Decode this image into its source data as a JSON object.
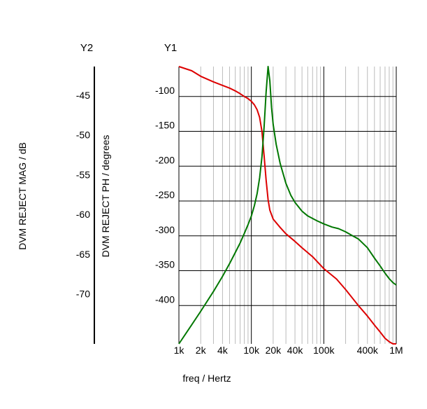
{
  "chart_data": {
    "type": "line",
    "title": "",
    "xlabel": "freq / Hertz",
    "x_scale": "log",
    "xlim": [
      1000,
      1000000
    ],
    "x_tick_labels": [
      {
        "value": 1000,
        "label": "1k"
      },
      {
        "value": 2000,
        "label": "2k"
      },
      {
        "value": 4000,
        "label": "4k"
      },
      {
        "value": 10000,
        "label": "10k"
      },
      {
        "value": 20000,
        "label": "20k"
      },
      {
        "value": 40000,
        "label": "40k"
      },
      {
        "value": 100000,
        "label": "100k"
      },
      {
        "value": 400000,
        "label": "400k"
      },
      {
        "value": 1000000,
        "label": "1M"
      }
    ],
    "grid": true,
    "y1": {
      "name": "Y1",
      "label": "DVM REJECT PH / degrees",
      "ylim": [
        -455,
        -57
      ],
      "ticks": [
        -100,
        -150,
        -200,
        -250,
        -300,
        -350,
        -400
      ],
      "tick_labels": [
        "-100",
        "-150",
        "-200",
        "-250",
        "-300",
        "-350",
        "-400"
      ]
    },
    "y2": {
      "name": "Y2",
      "label": "DVM REJECT MAG / dB",
      "ylim": [
        -76.3,
        -41.4
      ],
      "ticks": [
        -45,
        -50,
        -55,
        -60,
        -65,
        -70
      ],
      "tick_labels": [
        "-45",
        "-50",
        "-55",
        "-60",
        "-65",
        "-70"
      ]
    },
    "series": [
      {
        "color": "#dd0000",
        "axis": "y1",
        "x": [
          1000,
          1500,
          2000,
          3000,
          4000,
          5000,
          6000,
          7000,
          8000,
          9000,
          10000,
          11000,
          12000,
          13000,
          14000,
          15000,
          16000,
          17000,
          18000,
          20000,
          25000,
          30000,
          40000,
          50000,
          70000,
          100000,
          150000,
          200000,
          300000,
          400000,
          500000,
          600000,
          700000,
          800000,
          900000,
          1000000
        ],
        "values": [
          -57,
          -63,
          -71,
          -79,
          -84,
          -88,
          -92,
          -96,
          -100,
          -103,
          -107,
          -112,
          -119,
          -130,
          -150,
          -185,
          -220,
          -248,
          -263,
          -276,
          -288,
          -297,
          -308,
          -317,
          -330,
          -347,
          -362,
          -377,
          -400,
          -415,
          -428,
          -438,
          -447,
          -452,
          -455,
          -455
        ]
      },
      {
        "color": "#007700",
        "axis": "y2",
        "x": [
          1000,
          1500,
          2000,
          3000,
          4000,
          5000,
          6000,
          7000,
          8000,
          9000,
          10000,
          11000,
          12000,
          13000,
          14000,
          15000,
          16000,
          17000,
          18000,
          19000,
          20000,
          22000,
          25000,
          30000,
          35000,
          40000,
          50000,
          60000,
          80000,
          100000,
          130000,
          160000,
          200000,
          250000,
          300000,
          400000,
          500000,
          600000,
          700000,
          800000,
          900000,
          1000000
        ],
        "values": [
          -76.3,
          -73.9,
          -72.2,
          -69.7,
          -67.8,
          -66.2,
          -64.8,
          -63.6,
          -62.4,
          -61.3,
          -60.2,
          -58.9,
          -57.4,
          -55.4,
          -52.8,
          -49.0,
          -44.6,
          -41.4,
          -43.2,
          -46.6,
          -48.7,
          -51.2,
          -53.6,
          -56.1,
          -57.6,
          -58.5,
          -59.6,
          -60.2,
          -60.8,
          -61.2,
          -61.6,
          -61.8,
          -62.2,
          -62.7,
          -63.1,
          -64.2,
          -65.5,
          -66.5,
          -67.4,
          -68.1,
          -68.6,
          -68.9
        ]
      }
    ]
  }
}
